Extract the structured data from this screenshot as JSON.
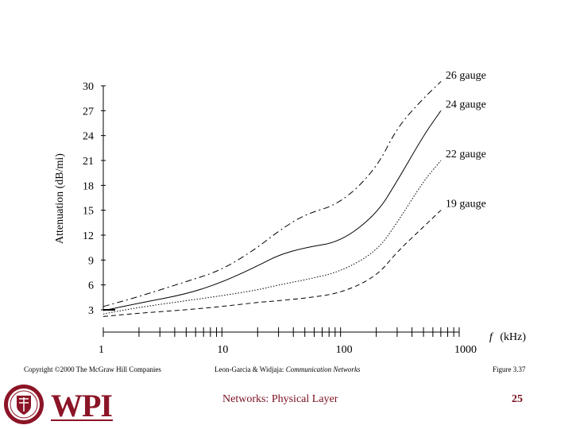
{
  "chart_data": {
    "type": "line",
    "title": "",
    "xlabel_symbol": "f",
    "xlabel": "(kHz)",
    "ylabel": "Attenuation (dB/mi)",
    "x_scale": "log",
    "xlim": [
      1,
      1000
    ],
    "ylim": [
      2,
      30
    ],
    "yticks": [
      3,
      6,
      9,
      12,
      15,
      18,
      21,
      24,
      27,
      30
    ],
    "xtick_labels": [
      "1",
      "10",
      "100",
      "1000"
    ],
    "series": [
      {
        "name": "26 gauge",
        "style": "dash-dot",
        "x": [
          1,
          2,
          5,
          10,
          20,
          30,
          50,
          100,
          200,
          300,
          500,
          700
        ],
        "y": [
          3.4,
          4.6,
          6.4,
          7.8,
          10.5,
          12.5,
          14.5,
          15.8,
          20.0,
          25.0,
          28.5,
          30.5
        ]
      },
      {
        "name": "24 gauge",
        "style": "solid",
        "x": [
          1,
          2,
          5,
          10,
          20,
          30,
          50,
          100,
          200,
          300,
          500,
          700
        ],
        "y": [
          2.9,
          3.8,
          4.9,
          6.3,
          8.3,
          9.6,
          10.5,
          11.2,
          14.5,
          18.5,
          24.0,
          27.0
        ]
      },
      {
        "name": "22 gauge",
        "style": "dotted",
        "x": [
          1,
          2,
          5,
          10,
          20,
          30,
          50,
          100,
          200,
          300,
          500,
          700
        ],
        "y": [
          2.5,
          3.3,
          4.1,
          4.7,
          5.4,
          6.0,
          6.6,
          7.6,
          10.0,
          13.5,
          18.5,
          21.0
        ]
      },
      {
        "name": "19 gauge",
        "style": "dashed",
        "x": [
          1,
          2,
          5,
          10,
          20,
          30,
          50,
          100,
          200,
          300,
          500,
          700
        ],
        "y": [
          2.2,
          2.6,
          3.0,
          3.4,
          3.9,
          4.1,
          4.4,
          5.0,
          7.0,
          10.0,
          13.0,
          15.0
        ]
      }
    ]
  },
  "footer": {
    "copyright": "Copyright ©2000 The McGraw Hill Companies",
    "authors": "Leon-Garcia & Widjaja:",
    "book": "Communication Networks",
    "figure": "Figure 3.37"
  },
  "slide": {
    "title": "Networks: Physical Layer",
    "number": "25",
    "logo_text": "WPI"
  }
}
